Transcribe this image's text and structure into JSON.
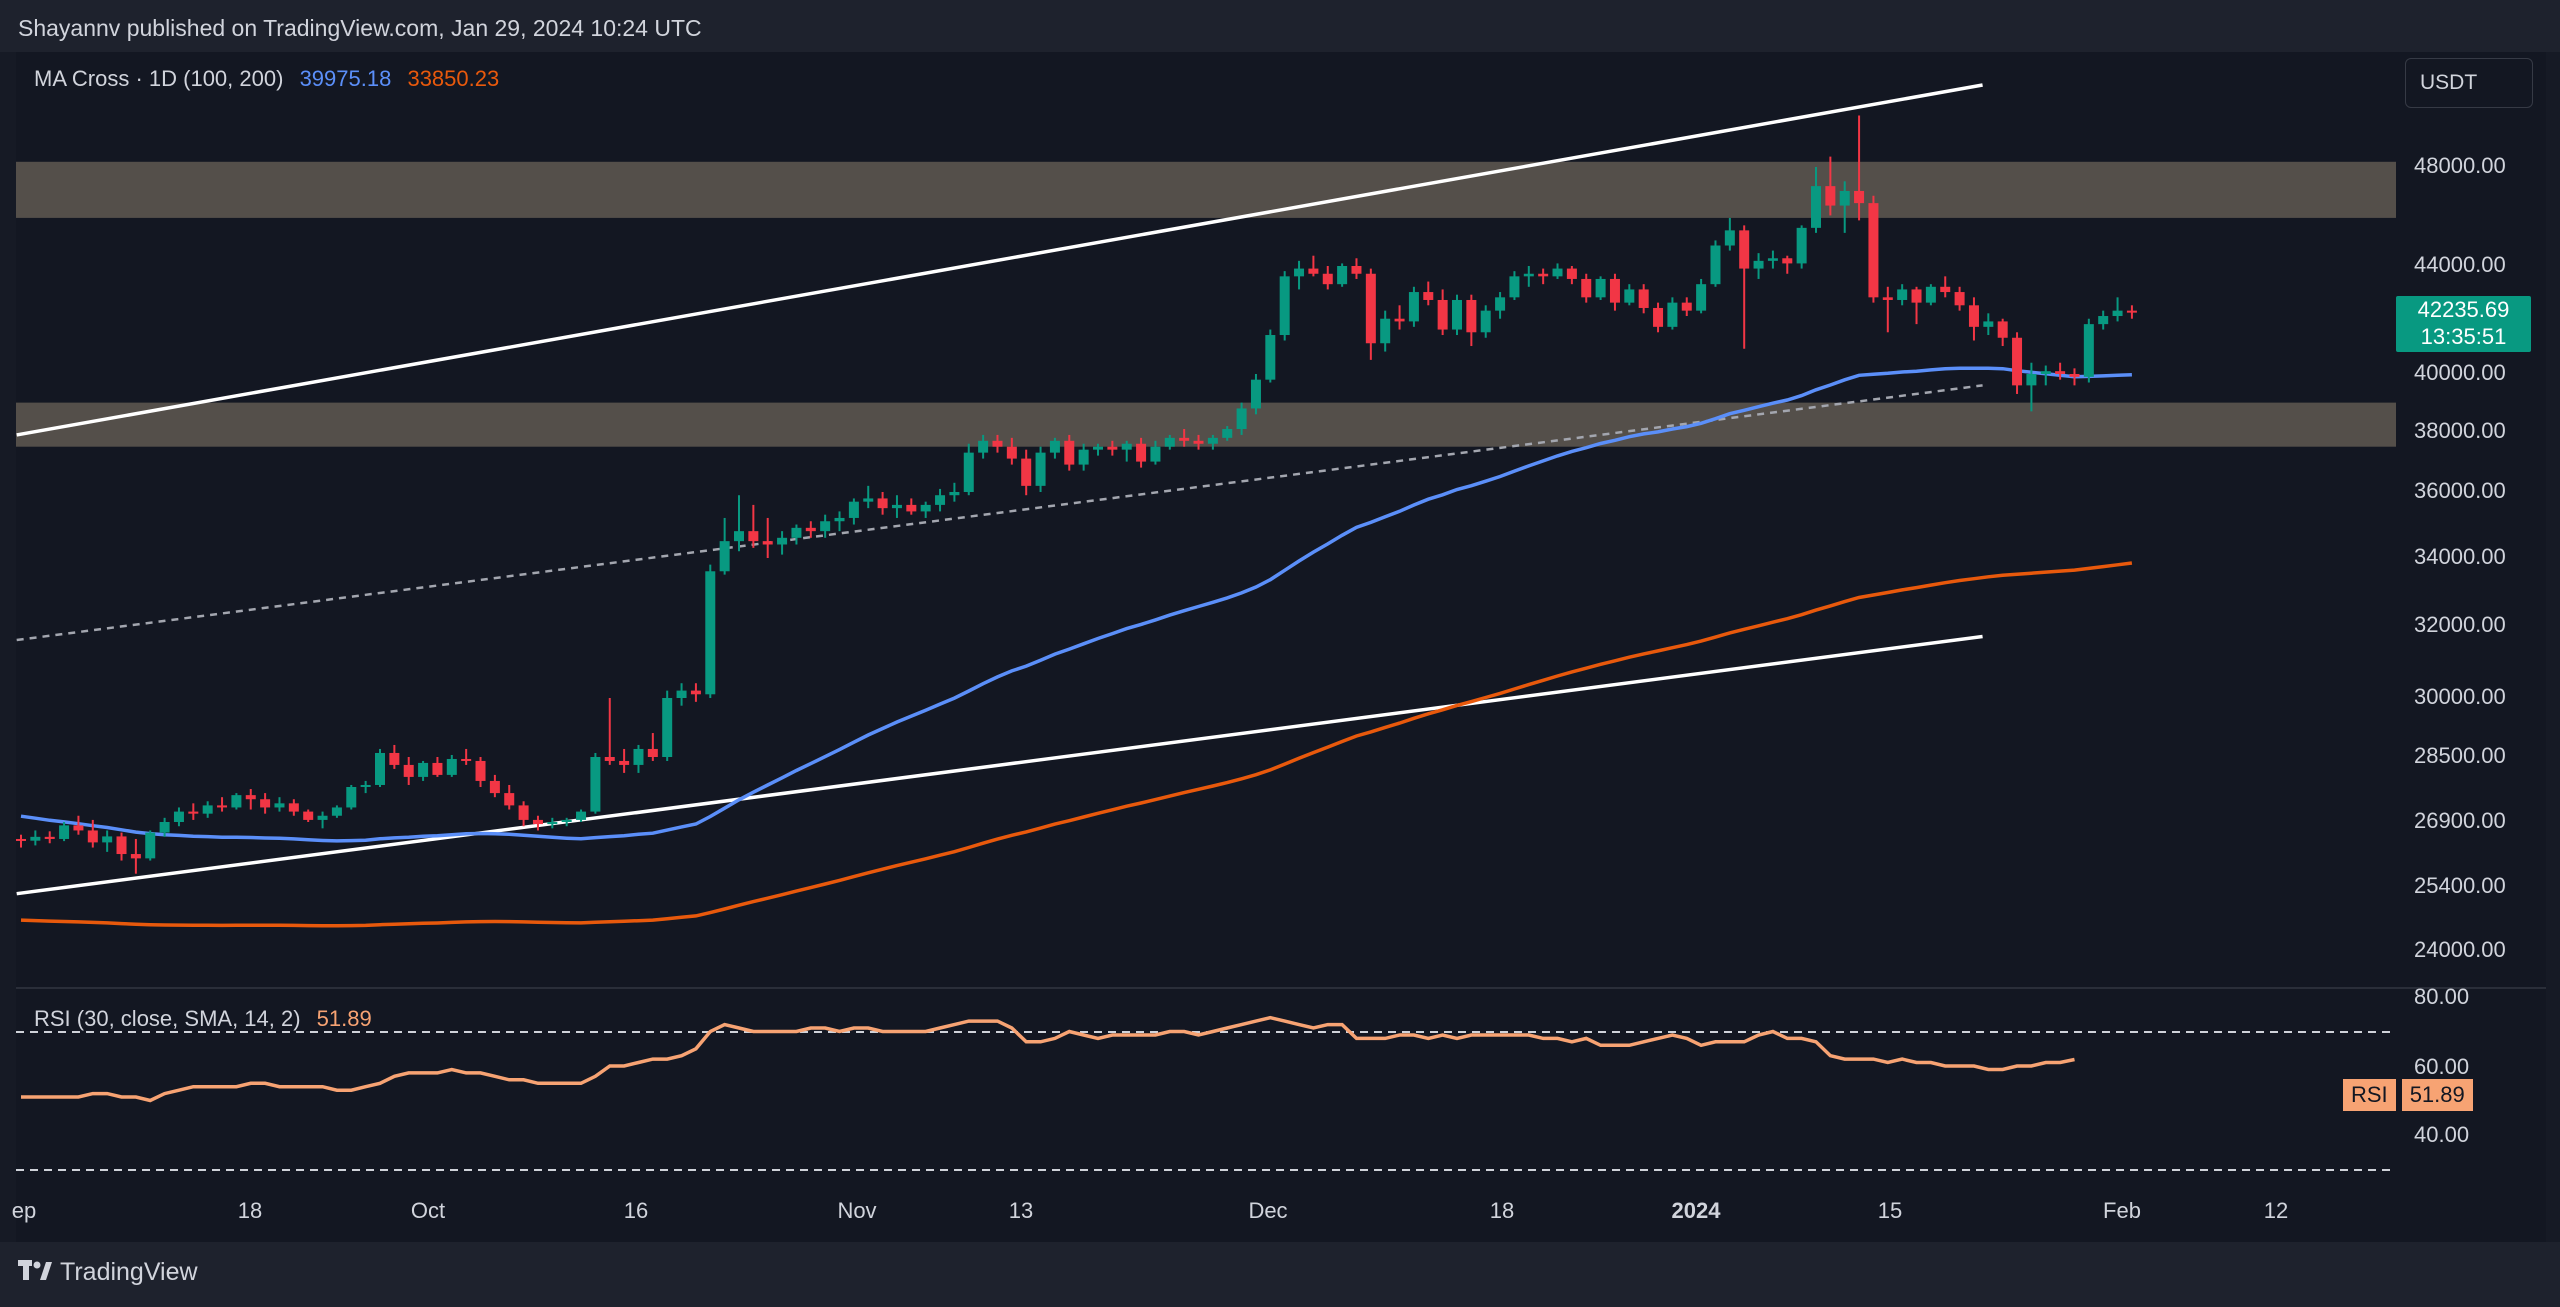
{
  "header": {
    "publisher_text": "Shayannv published on TradingView.com, Jan 29, 2024 10:24 UTC"
  },
  "legend": {
    "indicator": "MA Cross · 1D (100, 200)",
    "ma_fast": "39975.18",
    "ma_slow": "33850.23"
  },
  "currency": {
    "label": "USDT"
  },
  "last_price": {
    "price": "42235.69",
    "countdown": "13:35:51"
  },
  "rsi_legend": {
    "label": "RSI (30, close, SMA, 14, 2)",
    "value": "51.89"
  },
  "rsi_tag": {
    "label": "RSI",
    "value": "51.89"
  },
  "footer": {
    "brand": "TradingView"
  },
  "colors": {
    "up": "#089981",
    "down": "#f23645",
    "ma_fast": "#5b8ff9",
    "ma_slow": "#e8590c",
    "rsi": "#f7a373",
    "zone": "#5d5850"
  },
  "chart_data": {
    "type": "candlestick",
    "price_axis": {
      "ticks": [
        "48000.00",
        "44000.00",
        "40000.00",
        "38000.00",
        "36000.00",
        "34000.00",
        "32000.00",
        "30000.00",
        "28500.00",
        "26900.00",
        "25400.00",
        "24000.00"
      ]
    },
    "rsi_axis": {
      "ticks": [
        "80.00",
        "60.00",
        "40.00"
      ]
    },
    "time_axis": {
      "ticks": [
        "ep",
        "18",
        "Oct",
        "16",
        "Nov",
        "13",
        "Dec",
        "18",
        "2024",
        "15",
        "Feb",
        "12"
      ]
    },
    "zones": [
      {
        "name": "resistance",
        "range": [
          45900,
          48100
        ]
      },
      {
        "name": "support",
        "range": [
          37500,
          39000
        ]
      }
    ],
    "ohlc": [
      [
        26500,
        26600,
        26300,
        26460
      ],
      [
        26460,
        26700,
        26350,
        26550
      ],
      [
        26550,
        26680,
        26400,
        26500
      ],
      [
        26500,
        26900,
        26450,
        26820
      ],
      [
        26820,
        27050,
        26600,
        26700
      ],
      [
        26700,
        26950,
        26300,
        26420
      ],
      [
        26420,
        26700,
        26200,
        26560
      ],
      [
        26560,
        26650,
        26000,
        26150
      ],
      [
        26150,
        26500,
        25700,
        26050
      ],
      [
        26050,
        26700,
        26000,
        26650
      ],
      [
        26650,
        27000,
        26550,
        26900
      ],
      [
        26900,
        27250,
        26800,
        27150
      ],
      [
        27150,
        27350,
        26950,
        27100
      ],
      [
        27100,
        27400,
        27000,
        27300
      ],
      [
        27300,
        27500,
        27150,
        27250
      ],
      [
        27250,
        27600,
        27200,
        27550
      ],
      [
        27550,
        27700,
        27200,
        27450
      ],
      [
        27450,
        27600,
        27100,
        27250
      ],
      [
        27250,
        27500,
        27150,
        27350
      ],
      [
        27350,
        27450,
        27050,
        27150
      ],
      [
        27150,
        27200,
        26900,
        26950
      ],
      [
        26950,
        27150,
        26750,
        27050
      ],
      [
        27050,
        27300,
        27000,
        27250
      ],
      [
        27250,
        27800,
        27200,
        27750
      ],
      [
        27750,
        27900,
        27600,
        27800
      ],
      [
        27800,
        28700,
        27750,
        28600
      ],
      [
        28600,
        28800,
        28200,
        28300
      ],
      [
        28300,
        28500,
        27800,
        28000
      ],
      [
        28000,
        28400,
        27900,
        28350
      ],
      [
        28350,
        28500,
        28000,
        28050
      ],
      [
        28050,
        28550,
        28000,
        28450
      ],
      [
        28450,
        28700,
        28300,
        28400
      ],
      [
        28400,
        28500,
        27750,
        27900
      ],
      [
        27900,
        28050,
        27500,
        27600
      ],
      [
        27600,
        27800,
        27200,
        27300
      ],
      [
        27300,
        27400,
        26800,
        26950
      ],
      [
        26950,
        27050,
        26700,
        26850
      ],
      [
        26850,
        27000,
        26750,
        26900
      ],
      [
        26900,
        27000,
        26800,
        26950
      ],
      [
        26950,
        27200,
        26900,
        27150
      ],
      [
        27150,
        28600,
        27100,
        28500
      ],
      [
        28500,
        30000,
        28300,
        28400
      ],
      [
        28400,
        28700,
        28100,
        28300
      ],
      [
        28300,
        28800,
        28100,
        28700
      ],
      [
        28700,
        29100,
        28400,
        28500
      ],
      [
        28500,
        30200,
        28400,
        30000
      ],
      [
        30000,
        30400,
        29800,
        30200
      ],
      [
        30200,
        30400,
        29900,
        30100
      ],
      [
        30100,
        33800,
        30000,
        33600
      ],
      [
        33600,
        35200,
        33500,
        34500
      ],
      [
        34500,
        35900,
        34200,
        34800
      ],
      [
        34800,
        35600,
        34300,
        34500
      ],
      [
        34500,
        35200,
        34000,
        34400
      ],
      [
        34400,
        34800,
        34100,
        34600
      ],
      [
        34600,
        35000,
        34400,
        34900
      ],
      [
        34900,
        35100,
        34600,
        34800
      ],
      [
        34800,
        35300,
        34600,
        35100
      ],
      [
        35100,
        35400,
        34800,
        35200
      ],
      [
        35200,
        35800,
        35000,
        35700
      ],
      [
        35700,
        36200,
        35500,
        35800
      ],
      [
        35800,
        36000,
        35300,
        35500
      ],
      [
        35500,
        35900,
        35200,
        35600
      ],
      [
        35600,
        35800,
        35300,
        35400
      ],
      [
        35400,
        35700,
        35200,
        35600
      ],
      [
        35600,
        36100,
        35400,
        35900
      ],
      [
        35900,
        36300,
        35700,
        36000
      ],
      [
        36000,
        37600,
        35900,
        37300
      ],
      [
        37300,
        37900,
        37100,
        37700
      ],
      [
        37700,
        37900,
        37300,
        37500
      ],
      [
        37500,
        37800,
        36900,
        37100
      ],
      [
        37100,
        37400,
        35900,
        36200
      ],
      [
        36200,
        37500,
        36000,
        37300
      ],
      [
        37300,
        37800,
        37100,
        37700
      ],
      [
        37700,
        37900,
        36700,
        36900
      ],
      [
        36900,
        37600,
        36700,
        37400
      ],
      [
        37400,
        37600,
        37200,
        37500
      ],
      [
        37500,
        37700,
        37200,
        37400
      ],
      [
        37400,
        37700,
        37000,
        37600
      ],
      [
        37600,
        37800,
        36800,
        37000
      ],
      [
        37000,
        37700,
        36900,
        37500
      ],
      [
        37500,
        37900,
        37400,
        37800
      ],
      [
        37800,
        38100,
        37500,
        37700
      ],
      [
        37700,
        37900,
        37400,
        37600
      ],
      [
        37600,
        37900,
        37400,
        37800
      ],
      [
        37800,
        38200,
        37700,
        38100
      ],
      [
        38100,
        39000,
        37900,
        38800
      ],
      [
        38800,
        40000,
        38600,
        39800
      ],
      [
        39800,
        41600,
        39700,
        41400
      ],
      [
        41400,
        43800,
        41200,
        43600
      ],
      [
        43600,
        44200,
        43100,
        43900
      ],
      [
        43900,
        44400,
        43600,
        43700
      ],
      [
        43700,
        44000,
        43100,
        43300
      ],
      [
        43300,
        44100,
        43200,
        44000
      ],
      [
        44000,
        44300,
        43500,
        43700
      ],
      [
        43700,
        43900,
        40500,
        41100
      ],
      [
        41100,
        42300,
        40800,
        42000
      ],
      [
        42000,
        42500,
        41600,
        41900
      ],
      [
        41900,
        43200,
        41700,
        43000
      ],
      [
        43000,
        43400,
        42500,
        42700
      ],
      [
        42700,
        43100,
        41400,
        41600
      ],
      [
        41600,
        42900,
        41400,
        42700
      ],
      [
        42700,
        42900,
        41000,
        41500
      ],
      [
        41500,
        42500,
        41300,
        42300
      ],
      [
        42300,
        43000,
        42000,
        42800
      ],
      [
        42800,
        43800,
        42700,
        43600
      ],
      [
        43600,
        44000,
        43200,
        43700
      ],
      [
        43700,
        43900,
        43300,
        43600
      ],
      [
        43600,
        44100,
        43500,
        43900
      ],
      [
        43900,
        44000,
        43300,
        43500
      ],
      [
        43500,
        43700,
        42600,
        42800
      ],
      [
        42800,
        43600,
        42700,
        43500
      ],
      [
        43500,
        43700,
        42300,
        42600
      ],
      [
        42600,
        43300,
        42500,
        43100
      ],
      [
        43100,
        43300,
        42200,
        42400
      ],
      [
        42400,
        42600,
        41500,
        41700
      ],
      [
        41700,
        42800,
        41600,
        42600
      ],
      [
        42600,
        42800,
        42100,
        42300
      ],
      [
        42300,
        43500,
        42200,
        43300
      ],
      [
        43300,
        45000,
        43200,
        44800
      ],
      [
        44800,
        45900,
        44600,
        45400
      ],
      [
        45400,
        45600,
        40900,
        43900
      ],
      [
        43900,
        44500,
        43500,
        44200
      ],
      [
        44200,
        44600,
        43900,
        44300
      ],
      [
        44300,
        44400,
        43700,
        44100
      ],
      [
        44100,
        45600,
        43900,
        45500
      ],
      [
        45500,
        48000,
        45300,
        47200
      ],
      [
        47200,
        48200,
        46000,
        46400
      ],
      [
        46400,
        47400,
        45300,
        47000
      ],
      [
        47000,
        49000,
        45800,
        46500
      ],
      [
        46500,
        46800,
        42600,
        42800
      ],
      [
        42800,
        43200,
        41500,
        42700
      ],
      [
        42700,
        43300,
        42500,
        43100
      ],
      [
        43100,
        43200,
        41800,
        42600
      ],
      [
        42600,
        43300,
        42500,
        43200
      ],
      [
        43200,
        43600,
        42800,
        43000
      ],
      [
        43000,
        43200,
        42300,
        42500
      ],
      [
        42500,
        42800,
        41200,
        41700
      ],
      [
        41700,
        42200,
        41400,
        41900
      ],
      [
        41900,
        42000,
        41000,
        41300
      ],
      [
        41300,
        41500,
        39300,
        39600
      ],
      [
        39600,
        40400,
        38700,
        40000
      ],
      [
        40000,
        40300,
        39600,
        40100
      ],
      [
        40100,
        40400,
        39800,
        40000
      ],
      [
        40000,
        40200,
        39600,
        39900
      ],
      [
        39900,
        42000,
        39700,
        41800
      ],
      [
        41800,
        42300,
        41600,
        42100
      ],
      [
        42100,
        42800,
        41900,
        42300
      ],
      [
        42300,
        42500,
        42000,
        42236
      ]
    ],
    "ma_fast": {
      "name": "MA 100",
      "last": 39975.18
    },
    "ma_slow": {
      "name": "MA 200",
      "last": 33850.23
    },
    "rsi_series": [
      41,
      41,
      41,
      41,
      41,
      42,
      42,
      41,
      41,
      40,
      42,
      43,
      44,
      44,
      44,
      44,
      45,
      45,
      44,
      44,
      44,
      44,
      43,
      43,
      44,
      45,
      47,
      48,
      48,
      48,
      49,
      48,
      48,
      47,
      46,
      46,
      45,
      45,
      45,
      45,
      47,
      50,
      50,
      51,
      52,
      52,
      53,
      55,
      60,
      62,
      61,
      60,
      60,
      60,
      60,
      61,
      61,
      60,
      61,
      61,
      60,
      60,
      60,
      60,
      61,
      62,
      63,
      63,
      63,
      61,
      57,
      57,
      58,
      60,
      59,
      58,
      59,
      59,
      59,
      59,
      60,
      60,
      59,
      60,
      61,
      62,
      63,
      64,
      63,
      62,
      61,
      62,
      62,
      58,
      58,
      58,
      59,
      59,
      58,
      59,
      58,
      59,
      59,
      59,
      59,
      59,
      58,
      58,
      57,
      58,
      56,
      56,
      56,
      57,
      58,
      59,
      58,
      56,
      57,
      57,
      57,
      59,
      60,
      58,
      58,
      57,
      53,
      52,
      52,
      52,
      51,
      52,
      51,
      51,
      50,
      50,
      50,
      49,
      49,
      50,
      50,
      51,
      51,
      51.89
    ]
  }
}
